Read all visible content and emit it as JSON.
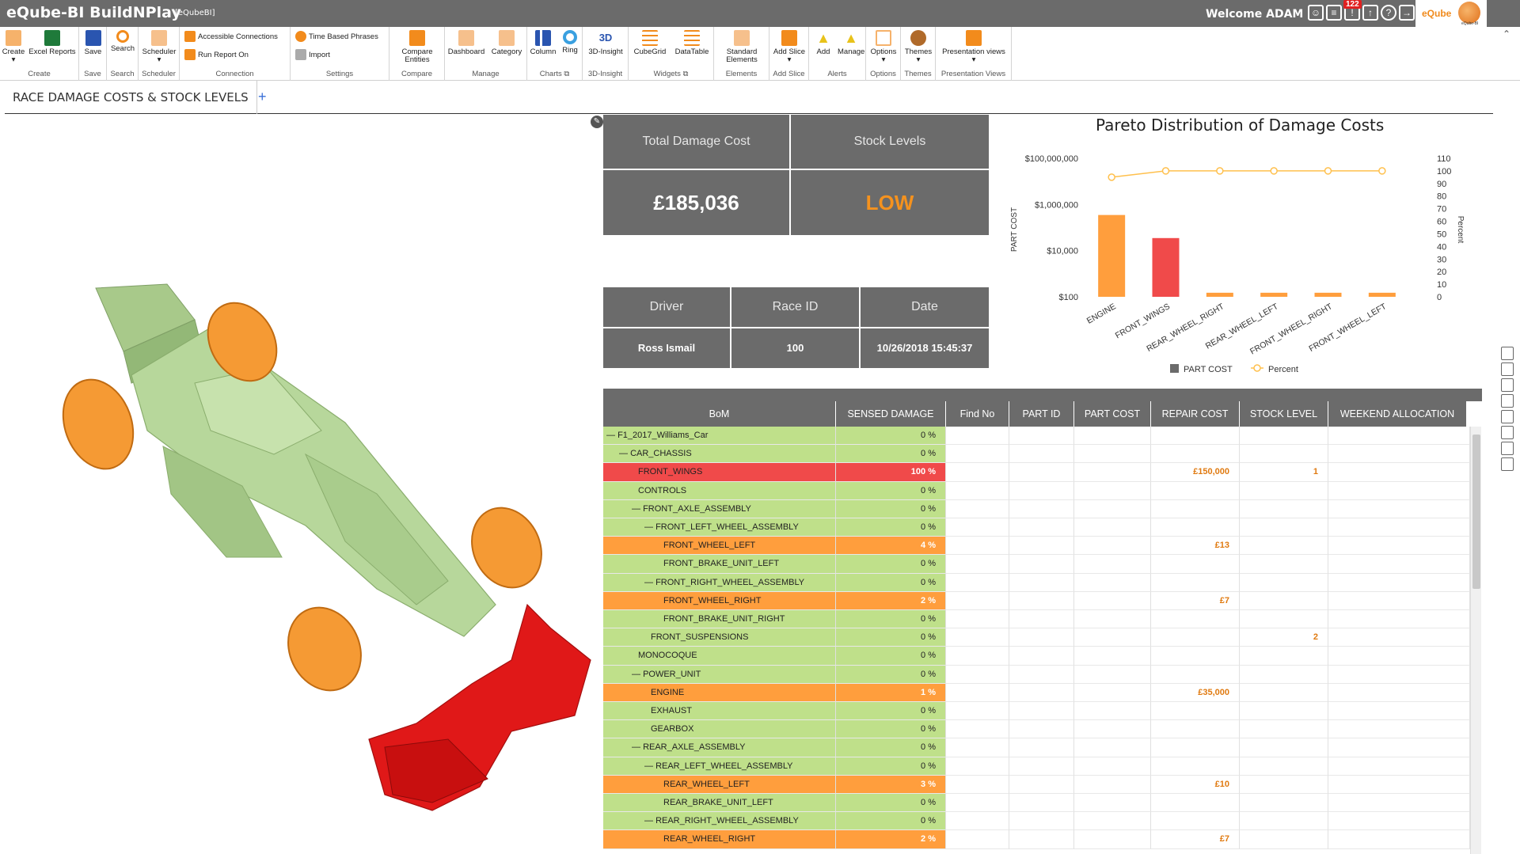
{
  "app": {
    "title": "eQube-BI BuildNPlay",
    "subtitle": "[eQubeBI]",
    "welcome": "Welcome ADAM",
    "notifications": "122",
    "logo_text": "eQube",
    "logo_sub": "eQube-BI"
  },
  "ribbon": {
    "groups": [
      {
        "name": "Create",
        "buttons": [
          "Create",
          "Excel Reports"
        ]
      },
      {
        "name": "Save",
        "buttons": [
          "Save"
        ]
      },
      {
        "name": "Search",
        "buttons": [
          "Search"
        ]
      },
      {
        "name": "Scheduler",
        "buttons": [
          "Scheduler"
        ]
      },
      {
        "name": "Connection",
        "buttons": [
          "Accessible Connections",
          "Run Report On"
        ]
      },
      {
        "name": "Settings",
        "buttons": [
          "Time Based Phrases",
          "Import"
        ]
      },
      {
        "name": "Compare",
        "buttons": [
          "Compare Entities"
        ]
      },
      {
        "name": "Manage",
        "buttons": [
          "Dashboard",
          "Category"
        ]
      },
      {
        "name": "Charts",
        "buttons": [
          "Column",
          "Ring"
        ]
      },
      {
        "name": "3D-Insight",
        "buttons": [
          "3D-Insight"
        ]
      },
      {
        "name": "Widgets",
        "buttons": [
          "CubeGrid",
          "DataTable"
        ]
      },
      {
        "name": "Elements",
        "buttons": [
          "Standard Elements"
        ]
      },
      {
        "name": "Add Slice",
        "buttons": [
          "Add Slice"
        ]
      },
      {
        "name": "Alerts",
        "buttons": [
          "Add",
          "Manage"
        ]
      },
      {
        "name": "Options",
        "buttons": [
          "Options"
        ]
      },
      {
        "name": "Themes",
        "buttons": [
          "Themes"
        ]
      },
      {
        "name": "Presentation Views",
        "buttons": [
          "Presentation views"
        ]
      }
    ]
  },
  "tabs": {
    "active": "RACE DAMAGE COSTS & STOCK LEVELS",
    "add": "+"
  },
  "kpi": {
    "total_label": "Total Damage Cost",
    "total_value": "£185,036",
    "stock_label": "Stock Levels",
    "stock_value": "LOW"
  },
  "info": {
    "headers": [
      "Driver",
      "Race ID",
      "Date"
    ],
    "values": [
      "Ross Ismail",
      "100",
      "10/26/2018 15:45:37"
    ]
  },
  "colors": {
    "panel": "#6b6b6b",
    "orange": "#ff9e3d",
    "red": "#f04a4a",
    "green": "#bfe08a",
    "accent_orange": "#f28b1c"
  },
  "chart_data": {
    "type": "bar",
    "title": "Pareto Distribution of  Damage Costs",
    "categories": [
      "ENGINE",
      "FRONT_WINGS",
      "REAR_WHEEL_RIGHT",
      "REAR_WHEEL_LEFT",
      "FRONT_WHEEL_RIGHT",
      "FRONT_WHEEL_LEFT"
    ],
    "series": [
      {
        "name": "PART COST",
        "type": "bar",
        "axis": "left",
        "scale": "log",
        "values": [
          350000,
          35000,
          150,
          150,
          150,
          150
        ],
        "colors": [
          "#ff9e3d",
          "#f04a4a",
          "#ff9e3d",
          "#ff9e3d",
          "#ff9e3d",
          "#ff9e3d"
        ]
      },
      {
        "name": "Percent",
        "type": "line",
        "axis": "right",
        "values": [
          95,
          100,
          100,
          100,
          100,
          100
        ],
        "color": "#ffc04d"
      }
    ],
    "ylabel": "PART COST",
    "y2label": "Percent",
    "yticks": [
      "$100,000,000",
      "$1,000,000",
      "$10,000",
      "$100"
    ],
    "y2ticks": [
      110,
      100,
      90,
      80,
      70,
      60,
      50,
      40,
      30,
      20,
      10,
      0
    ],
    "ylim": [
      100,
      100000000
    ],
    "y2lim": [
      0,
      110
    ],
    "legend": "bottom"
  },
  "grid": {
    "columns": [
      "BoM",
      "SENSED DAMAGE",
      "Find No",
      "PART ID",
      "PART COST",
      "REPAIR COST",
      "STOCK LEVEL",
      "WEEKEND ALLOCATION"
    ],
    "rows": [
      {
        "name": "F1_2017_Williams_Car",
        "level": 0,
        "tree": true,
        "sensed": "0 %",
        "repair": "",
        "stock": "",
        "status": "ok"
      },
      {
        "name": "CAR_CHASSIS",
        "level": 1,
        "tree": true,
        "sensed": "0 %",
        "repair": "",
        "stock": "",
        "status": "ok"
      },
      {
        "name": "FRONT_WINGS",
        "level": 2,
        "tree": false,
        "sensed": "100 %",
        "repair": "£150,000",
        "stock": "1",
        "status": "critical"
      },
      {
        "name": "CONTROLS",
        "level": 2,
        "tree": false,
        "sensed": "0 %",
        "repair": "",
        "stock": "",
        "status": "ok"
      },
      {
        "name": "FRONT_AXLE_ASSEMBLY",
        "level": 2,
        "tree": true,
        "sensed": "0 %",
        "repair": "",
        "stock": "",
        "status": "ok"
      },
      {
        "name": "FRONT_LEFT_WHEEL_ASSEMBLY",
        "level": 3,
        "tree": true,
        "sensed": "0 %",
        "repair": "",
        "stock": "",
        "status": "ok"
      },
      {
        "name": "FRONT_WHEEL_LEFT",
        "level": 4,
        "tree": false,
        "sensed": "4 %",
        "repair": "£13",
        "stock": "",
        "status": "warn"
      },
      {
        "name": "FRONT_BRAKE_UNIT_LEFT",
        "level": 4,
        "tree": false,
        "sensed": "0 %",
        "repair": "",
        "stock": "",
        "status": "ok"
      },
      {
        "name": "FRONT_RIGHT_WHEEL_ASSEMBLY",
        "level": 3,
        "tree": true,
        "sensed": "0 %",
        "repair": "",
        "stock": "",
        "status": "ok"
      },
      {
        "name": "FRONT_WHEEL_RIGHT",
        "level": 4,
        "tree": false,
        "sensed": "2 %",
        "repair": "£7",
        "stock": "",
        "status": "warn"
      },
      {
        "name": "FRONT_BRAKE_UNIT_RIGHT",
        "level": 4,
        "tree": false,
        "sensed": "0 %",
        "repair": "",
        "stock": "",
        "status": "ok"
      },
      {
        "name": "FRONT_SUSPENSIONS",
        "level": 3,
        "tree": false,
        "sensed": "0 %",
        "repair": "",
        "stock": "2",
        "status": "ok"
      },
      {
        "name": "MONOCOQUE",
        "level": 2,
        "tree": false,
        "sensed": "0 %",
        "repair": "",
        "stock": "",
        "status": "ok"
      },
      {
        "name": "POWER_UNIT",
        "level": 2,
        "tree": true,
        "sensed": "0 %",
        "repair": "",
        "stock": "",
        "status": "ok"
      },
      {
        "name": "ENGINE",
        "level": 3,
        "tree": false,
        "sensed": "1 %",
        "repair": "£35,000",
        "stock": "",
        "status": "warn"
      },
      {
        "name": "EXHAUST",
        "level": 3,
        "tree": false,
        "sensed": "0 %",
        "repair": "",
        "stock": "",
        "status": "ok"
      },
      {
        "name": "GEARBOX",
        "level": 3,
        "tree": false,
        "sensed": "0 %",
        "repair": "",
        "stock": "",
        "status": "ok"
      },
      {
        "name": "REAR_AXLE_ASSEMBLY",
        "level": 2,
        "tree": true,
        "sensed": "0 %",
        "repair": "",
        "stock": "",
        "status": "ok"
      },
      {
        "name": "REAR_LEFT_WHEEL_ASSEMBLY",
        "level": 3,
        "tree": true,
        "sensed": "0 %",
        "repair": "",
        "stock": "",
        "status": "ok"
      },
      {
        "name": "REAR_WHEEL_LEFT",
        "level": 4,
        "tree": false,
        "sensed": "3 %",
        "repair": "£10",
        "stock": "",
        "status": "warn"
      },
      {
        "name": "REAR_BRAKE_UNIT_LEFT",
        "level": 4,
        "tree": false,
        "sensed": "0 %",
        "repair": "",
        "stock": "",
        "status": "ok"
      },
      {
        "name": "REAR_RIGHT_WHEEL_ASSEMBLY",
        "level": 3,
        "tree": true,
        "sensed": "0 %",
        "repair": "",
        "stock": "",
        "status": "ok"
      },
      {
        "name": "REAR_WHEEL_RIGHT",
        "level": 4,
        "tree": false,
        "sensed": "2 %",
        "repair": "£7",
        "stock": "",
        "status": "warn"
      }
    ]
  }
}
